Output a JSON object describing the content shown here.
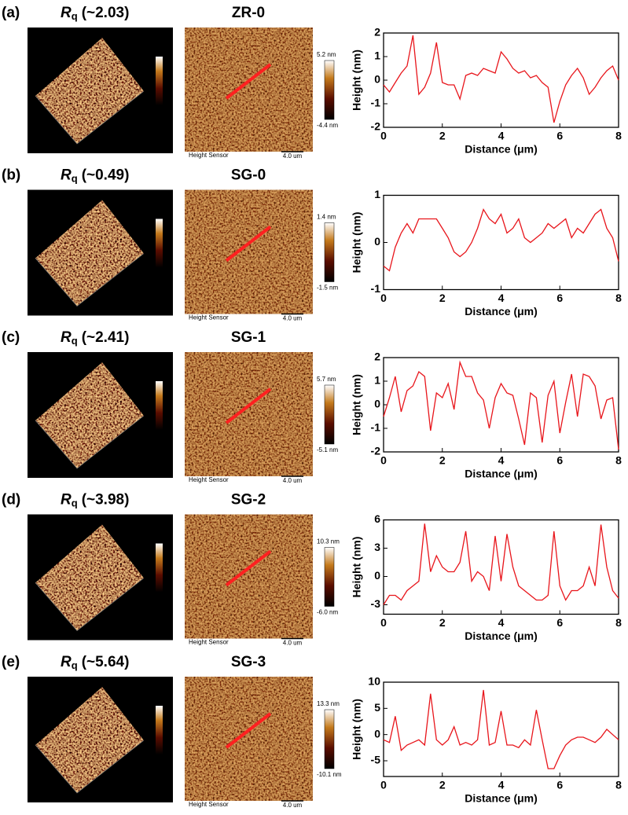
{
  "panels": [
    {
      "label": "(a)",
      "rq_symbol": "R",
      "rq_sub": "q",
      "rq_value": "(~2.03)",
      "sample": "ZR-0",
      "cbar_max": "5.2 nm",
      "cbar_min": "-4.4 nm",
      "sensor": "Height Sensor",
      "scale": "4.0 um"
    },
    {
      "label": "(b)",
      "rq_symbol": "R",
      "rq_sub": "q",
      "rq_value": "(~0.49)",
      "sample": "SG-0",
      "cbar_max": "1.4 nm",
      "cbar_min": "-1.5 nm",
      "sensor": "Height Sensor",
      "scale": "4.0 um"
    },
    {
      "label": "(c)",
      "rq_symbol": "R",
      "rq_sub": "q",
      "rq_value": "(~2.41)",
      "sample": "SG-1",
      "cbar_max": "5.7 nm",
      "cbar_min": "-5.1 nm",
      "sensor": "Height Sensor",
      "scale": "4.0 um"
    },
    {
      "label": "(d)",
      "rq_symbol": "R",
      "rq_sub": "q",
      "rq_value": "(~3.98)",
      "sample": "SG-2",
      "cbar_max": "10.3 nm",
      "cbar_min": "-6.0 nm",
      "sensor": "Height Sensor",
      "scale": "4.0 um"
    },
    {
      "label": "(e)",
      "rq_symbol": "R",
      "rq_sub": "q",
      "rq_value": "(~5.64)",
      "sample": "SG-3",
      "cbar_max": "13.3 nm",
      "cbar_min": "-10.1 nm",
      "sensor": "Height Sensor",
      "scale": "4.0 um"
    }
  ],
  "chart_data": [
    {
      "type": "line",
      "x_label": "Distance (μm)",
      "y_label": "Height (nm)",
      "xlim": [
        0,
        8
      ],
      "xticks": [
        0,
        2,
        4,
        6,
        8
      ],
      "ylim": [
        -2,
        2
      ],
      "yticks": [
        -2,
        -1,
        0,
        1,
        2
      ],
      "x": [
        0,
        0.2,
        0.4,
        0.6,
        0.8,
        1,
        1.2,
        1.4,
        1.6,
        1.8,
        2,
        2.2,
        2.4,
        2.6,
        2.8,
        3,
        3.2,
        3.4,
        3.6,
        3.8,
        4,
        4.2,
        4.4,
        4.6,
        4.8,
        5,
        5.2,
        5.4,
        5.6,
        5.8,
        6,
        6.2,
        6.4,
        6.6,
        6.8,
        7,
        7.2,
        7.4,
        7.6,
        7.8,
        8
      ],
      "series": [
        {
          "color": "#e8151b",
          "values": [
            -0.2,
            -0.5,
            -0.1,
            0.3,
            0.6,
            1.9,
            -0.6,
            -0.3,
            0.3,
            1.6,
            -0.1,
            -0.2,
            -0.2,
            -0.8,
            0.2,
            0.3,
            0.2,
            0.5,
            0.4,
            0.3,
            1.2,
            0.9,
            0.5,
            0.3,
            0.4,
            0.1,
            0.2,
            -0.1,
            -0.3,
            -1.8,
            -0.9,
            -0.2,
            0.2,
            0.5,
            0.1,
            -0.6,
            -0.3,
            0.1,
            0.4,
            0.6,
            0
          ]
        }
      ]
    },
    {
      "type": "line",
      "x_label": "Distance (μm)",
      "y_label": "Height (nm)",
      "xlim": [
        0,
        8
      ],
      "xticks": [
        0,
        2,
        4,
        6,
        8
      ],
      "ylim": [
        -1,
        1
      ],
      "yticks": [
        -1,
        0,
        1
      ],
      "x": [
        0,
        0.2,
        0.4,
        0.6,
        0.8,
        1,
        1.2,
        1.4,
        1.6,
        1.8,
        2,
        2.2,
        2.4,
        2.6,
        2.8,
        3,
        3.2,
        3.4,
        3.6,
        3.8,
        4,
        4.2,
        4.4,
        4.6,
        4.8,
        5,
        5.2,
        5.4,
        5.6,
        5.8,
        6,
        6.2,
        6.4,
        6.6,
        6.8,
        7,
        7.2,
        7.4,
        7.6,
        7.8,
        8
      ],
      "series": [
        {
          "color": "#e8151b",
          "values": [
            -0.5,
            -0.6,
            -0.1,
            0.2,
            0.4,
            0.2,
            0.5,
            0.5,
            0.5,
            0.5,
            0.3,
            0.1,
            -0.2,
            -0.3,
            -0.2,
            0,
            0.3,
            0.7,
            0.5,
            0.4,
            0.6,
            0.2,
            0.3,
            0.5,
            0.1,
            0,
            0.1,
            0.2,
            0.4,
            0.3,
            0.4,
            0.5,
            0.1,
            0.3,
            0.2,
            0.4,
            0.6,
            0.7,
            0.3,
            0.1,
            -0.4
          ]
        }
      ]
    },
    {
      "type": "line",
      "x_label": "Distance (μm)",
      "y_label": "Height (nm)",
      "xlim": [
        0,
        8
      ],
      "xticks": [
        0,
        2,
        4,
        6,
        8
      ],
      "ylim": [
        -2,
        2
      ],
      "yticks": [
        -2,
        -1,
        0,
        1,
        2
      ],
      "x": [
        0,
        0.2,
        0.4,
        0.6,
        0.8,
        1,
        1.2,
        1.4,
        1.6,
        1.8,
        2,
        2.2,
        2.4,
        2.6,
        2.8,
        3,
        3.2,
        3.4,
        3.6,
        3.8,
        4,
        4.2,
        4.4,
        4.6,
        4.8,
        5,
        5.2,
        5.4,
        5.6,
        5.8,
        6,
        6.2,
        6.4,
        6.6,
        6.8,
        7,
        7.2,
        7.4,
        7.6,
        7.8,
        8
      ],
      "series": [
        {
          "color": "#e8151b",
          "values": [
            -0.5,
            0.3,
            1.2,
            -0.3,
            0.6,
            0.8,
            1.4,
            1.2,
            -1.1,
            0.5,
            0.3,
            0.9,
            -0.2,
            1.8,
            1.2,
            1.2,
            0.5,
            0.2,
            -1,
            0.3,
            0.9,
            0.5,
            0.4,
            -0.6,
            -1.7,
            0.5,
            0.3,
            -1.6,
            0.4,
            1,
            -1.2,
            0.1,
            1.3,
            -0.5,
            1.3,
            1.2,
            0.8,
            -0.6,
            0.2,
            0.3,
            -1.9
          ]
        }
      ]
    },
    {
      "type": "line",
      "x_label": "Distance (μm)",
      "y_label": "Height (nm)",
      "xlim": [
        0,
        8
      ],
      "xticks": [
        0,
        2,
        4,
        6,
        8
      ],
      "ylim": [
        -4,
        6
      ],
      "yticks": [
        -3,
        0,
        3,
        6
      ],
      "x": [
        0,
        0.2,
        0.4,
        0.6,
        0.8,
        1,
        1.2,
        1.4,
        1.6,
        1.8,
        2,
        2.2,
        2.4,
        2.6,
        2.8,
        3,
        3.2,
        3.4,
        3.6,
        3.8,
        4,
        4.2,
        4.4,
        4.6,
        4.8,
        5,
        5.2,
        5.4,
        5.6,
        5.8,
        6,
        6.2,
        6.4,
        6.6,
        6.8,
        7,
        7.2,
        7.4,
        7.6,
        7.8,
        8
      ],
      "series": [
        {
          "color": "#e8151b",
          "values": [
            -3,
            -2,
            -2,
            -2.5,
            -1.5,
            -1,
            -0.5,
            5.6,
            0.5,
            2.2,
            1,
            0.5,
            0.5,
            1.5,
            4.8,
            -0.5,
            0.5,
            0,
            -1.5,
            4.3,
            -0.5,
            4.5,
            1,
            -1,
            -1.5,
            -2,
            -2.5,
            -2.5,
            -2,
            4.8,
            -1,
            -2.5,
            -1.5,
            -1.5,
            -1,
            1,
            -1,
            5.5,
            1,
            -1.5,
            -2.3
          ]
        }
      ]
    },
    {
      "type": "line",
      "x_label": "Distance (μm)",
      "y_label": "Height (nm)",
      "xlim": [
        0,
        8
      ],
      "xticks": [
        0,
        2,
        4,
        6,
        8
      ],
      "ylim": [
        -8,
        10
      ],
      "yticks": [
        -5,
        0,
        5,
        10
      ],
      "x": [
        0,
        0.2,
        0.4,
        0.6,
        0.8,
        1,
        1.2,
        1.4,
        1.6,
        1.8,
        2,
        2.2,
        2.4,
        2.6,
        2.8,
        3,
        3.2,
        3.4,
        3.6,
        3.8,
        4,
        4.2,
        4.4,
        4.6,
        4.8,
        5,
        5.2,
        5.4,
        5.6,
        5.8,
        6,
        6.2,
        6.4,
        6.6,
        6.8,
        7,
        7.2,
        7.4,
        7.6,
        7.8,
        8
      ],
      "series": [
        {
          "color": "#e8151b",
          "values": [
            -1,
            -1.5,
            3.5,
            -3,
            -2,
            -1.5,
            -1,
            -2,
            7.8,
            -1,
            -2,
            -1,
            1.5,
            -2,
            -1.5,
            -2,
            -1,
            8.5,
            -2,
            -1.5,
            4.5,
            -2,
            -2,
            -2.5,
            -1,
            -2,
            4.7,
            -1,
            -6.5,
            -6.5,
            -4,
            -2,
            -1,
            -0.5,
            -0.5,
            -1,
            -1.5,
            -0.5,
            1,
            0,
            -1
          ]
        }
      ]
    }
  ]
}
